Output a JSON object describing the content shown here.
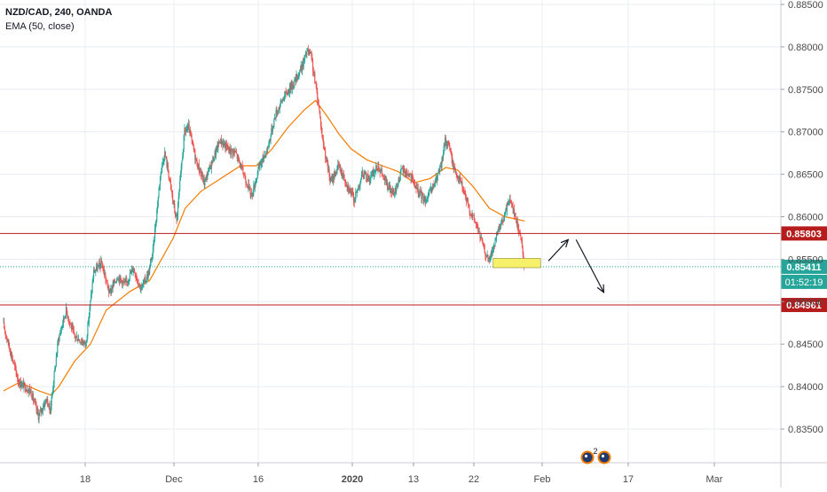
{
  "header": {
    "symbol_line": "NZD/CAD, 240, OANDA",
    "indicator_line": "EMA (50, close)"
  },
  "chart_data": {
    "type": "candlestick",
    "symbol": "NZD/CAD",
    "interval": "240",
    "broker": "OANDA",
    "indicator": "EMA (50, close)",
    "y_ticks": [
      "0.88500",
      "0.88000",
      "0.87500",
      "0.87000",
      "0.86500",
      "0.86000",
      "0.85500",
      "0.85000",
      "0.84500",
      "0.84000",
      "0.83500"
    ],
    "x_ticks": [
      "18",
      "Dec",
      "16",
      "2020",
      "13",
      "22",
      "Feb",
      "17",
      "Mar"
    ],
    "ylim": [
      0.8305,
      0.8855
    ],
    "price_path": [
      {
        "d": 0,
        "p": 0.8475
      },
      {
        "d": 4,
        "p": 0.8405
      },
      {
        "d": 7,
        "p": 0.8395
      },
      {
        "d": 9,
        "p": 0.8365
      },
      {
        "d": 11,
        "p": 0.8385
      },
      {
        "d": 12,
        "p": 0.8372
      },
      {
        "d": 14,
        "p": 0.8455
      },
      {
        "d": 16,
        "p": 0.849
      },
      {
        "d": 18,
        "p": 0.846
      },
      {
        "d": 21,
        "p": 0.845
      },
      {
        "d": 23,
        "p": 0.8535
      },
      {
        "d": 25,
        "p": 0.8545
      },
      {
        "d": 27,
        "p": 0.851
      },
      {
        "d": 29,
        "p": 0.853
      },
      {
        "d": 31,
        "p": 0.852
      },
      {
        "d": 33,
        "p": 0.854
      },
      {
        "d": 35,
        "p": 0.8515
      },
      {
        "d": 37,
        "p": 0.8535
      },
      {
        "d": 38,
        "p": 0.856
      },
      {
        "d": 40,
        "p": 0.8655
      },
      {
        "d": 41,
        "p": 0.8675
      },
      {
        "d": 42,
        "p": 0.865
      },
      {
        "d": 43,
        "p": 0.862
      },
      {
        "d": 44,
        "p": 0.8595
      },
      {
        "d": 46,
        "p": 0.87
      },
      {
        "d": 47,
        "p": 0.8705
      },
      {
        "d": 49,
        "p": 0.8665
      },
      {
        "d": 51,
        "p": 0.864
      },
      {
        "d": 53,
        "p": 0.8665
      },
      {
        "d": 55,
        "p": 0.869
      },
      {
        "d": 57,
        "p": 0.868
      },
      {
        "d": 59,
        "p": 0.8675
      },
      {
        "d": 61,
        "p": 0.865
      },
      {
        "d": 63,
        "p": 0.8625
      },
      {
        "d": 65,
        "p": 0.866
      },
      {
        "d": 67,
        "p": 0.868
      },
      {
        "d": 69,
        "p": 0.872
      },
      {
        "d": 71,
        "p": 0.874
      },
      {
        "d": 74,
        "p": 0.876
      },
      {
        "d": 76,
        "p": 0.878
      },
      {
        "d": 77,
        "p": 0.8795
      },
      {
        "d": 78,
        "p": 0.879
      },
      {
        "d": 79,
        "p": 0.876
      },
      {
        "d": 80,
        "p": 0.873
      },
      {
        "d": 81,
        "p": 0.869
      },
      {
        "d": 82,
        "p": 0.8665
      },
      {
        "d": 83,
        "p": 0.864
      },
      {
        "d": 85,
        "p": 0.866
      },
      {
        "d": 87,
        "p": 0.864
      },
      {
        "d": 89,
        "p": 0.862
      },
      {
        "d": 91,
        "p": 0.865
      },
      {
        "d": 93,
        "p": 0.8645
      },
      {
        "d": 95,
        "p": 0.866
      },
      {
        "d": 97,
        "p": 0.864
      },
      {
        "d": 99,
        "p": 0.8625
      },
      {
        "d": 101,
        "p": 0.8655
      },
      {
        "d": 103,
        "p": 0.865
      },
      {
        "d": 105,
        "p": 0.863
      },
      {
        "d": 107,
        "p": 0.862
      },
      {
        "d": 109,
        "p": 0.8635
      },
      {
        "d": 111,
        "p": 0.866
      },
      {
        "d": 112,
        "p": 0.869
      },
      {
        "d": 113,
        "p": 0.8685
      },
      {
        "d": 114,
        "p": 0.866
      },
      {
        "d": 116,
        "p": 0.864
      },
      {
        "d": 118,
        "p": 0.861
      },
      {
        "d": 120,
        "p": 0.859
      },
      {
        "d": 122,
        "p": 0.856
      },
      {
        "d": 123,
        "p": 0.8548
      },
      {
        "d": 124,
        "p": 0.856
      },
      {
        "d": 126,
        "p": 0.859
      },
      {
        "d": 127,
        "p": 0.86
      },
      {
        "d": 128,
        "p": 0.862
      },
      {
        "d": 129,
        "p": 0.8615
      },
      {
        "d": 130,
        "p": 0.8595
      },
      {
        "d": 131,
        "p": 0.858
      },
      {
        "d": 132,
        "p": 0.8545
      }
    ],
    "ema_path": [
      {
        "d": 0,
        "p": 0.8395
      },
      {
        "d": 4,
        "p": 0.8405
      },
      {
        "d": 9,
        "p": 0.8395
      },
      {
        "d": 12,
        "p": 0.839
      },
      {
        "d": 14,
        "p": 0.84
      },
      {
        "d": 18,
        "p": 0.843
      },
      {
        "d": 22,
        "p": 0.845
      },
      {
        "d": 26,
        "p": 0.849
      },
      {
        "d": 32,
        "p": 0.8512
      },
      {
        "d": 37,
        "p": 0.8525
      },
      {
        "d": 40,
        "p": 0.855
      },
      {
        "d": 43,
        "p": 0.8575
      },
      {
        "d": 46,
        "p": 0.861
      },
      {
        "d": 50,
        "p": 0.863
      },
      {
        "d": 55,
        "p": 0.8645
      },
      {
        "d": 60,
        "p": 0.866
      },
      {
        "d": 64,
        "p": 0.866
      },
      {
        "d": 68,
        "p": 0.868
      },
      {
        "d": 72,
        "p": 0.8705
      },
      {
        "d": 76,
        "p": 0.8725
      },
      {
        "d": 79,
        "p": 0.8737
      },
      {
        "d": 82,
        "p": 0.8718
      },
      {
        "d": 85,
        "p": 0.8697
      },
      {
        "d": 88,
        "p": 0.868
      },
      {
        "d": 92,
        "p": 0.8667
      },
      {
        "d": 96,
        "p": 0.866
      },
      {
        "d": 100,
        "p": 0.8653
      },
      {
        "d": 104,
        "p": 0.864
      },
      {
        "d": 108,
        "p": 0.8645
      },
      {
        "d": 112,
        "p": 0.8658
      },
      {
        "d": 115,
        "p": 0.8655
      },
      {
        "d": 119,
        "p": 0.8635
      },
      {
        "d": 123,
        "p": 0.861
      },
      {
        "d": 127,
        "p": 0.86
      },
      {
        "d": 132,
        "p": 0.8595
      }
    ],
    "lines": [
      {
        "name": "resistance",
        "value": 0.85803,
        "label": "0.85803",
        "color": "#b71c1c"
      },
      {
        "name": "support",
        "value": 0.84961,
        "label": "0.84961",
        "color": "#b71c1c"
      },
      {
        "name": "last-price",
        "value": 0.85411,
        "label": "0.85411",
        "color": "#26a69a"
      }
    ],
    "countdown_label": "01:52:19",
    "zone": {
      "from_d": 124,
      "to_d": 136,
      "low": 0.854,
      "high": 0.8551,
      "color": "#f7f06a"
    },
    "arrows": [
      {
        "from": {
          "d": 138,
          "p": 0.8548
        },
        "to": {
          "d": 143,
          "p": 0.8573
        }
      },
      {
        "from": {
          "d": 145,
          "p": 0.8573
        },
        "to": {
          "d": 152,
          "p": 0.8511
        }
      }
    ],
    "colors": {
      "up": "#26a69a",
      "down": "#ef5350",
      "ema": "#f57c00",
      "grid": "#e8ecf2",
      "axis_text": "#4a4a4a"
    }
  }
}
